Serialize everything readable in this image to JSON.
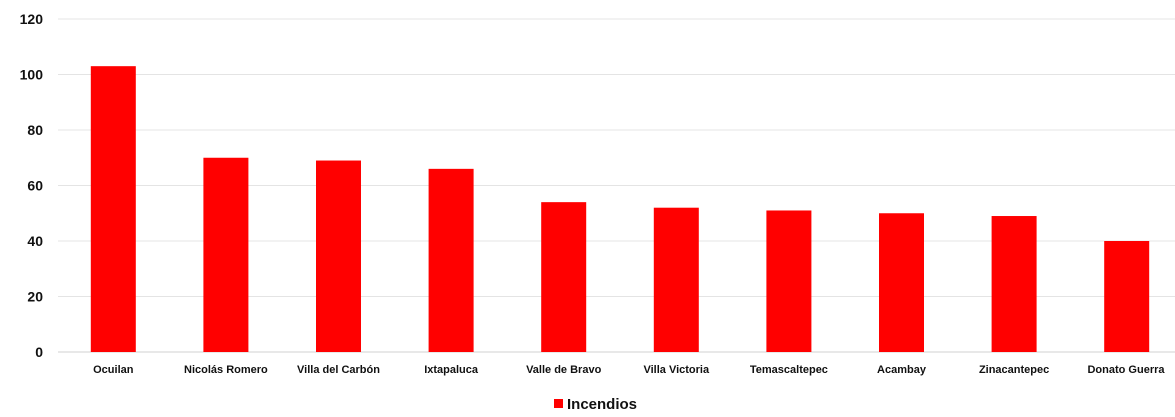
{
  "chart_data": {
    "type": "bar",
    "categories": [
      "Ocuilan",
      "Nicolás Romero",
      "Villa del Carbón",
      "Ixtapaluca",
      "Valle de Bravo",
      "Villa Victoria",
      "Temascaltepec",
      "Acambay",
      "Zinacantepec",
      "Donato Guerra"
    ],
    "series": [
      {
        "name": "Incendios",
        "color": "#ff0000",
        "values": [
          103,
          70,
          69,
          66,
          54,
          52,
          51,
          50,
          49,
          40
        ]
      }
    ],
    "title": "",
    "xlabel": "",
    "ylabel": "",
    "ylim": [
      0,
      120
    ],
    "yticks": [
      0,
      20,
      40,
      60,
      80,
      100,
      120
    ],
    "grid": true,
    "legend_position": "bottom-center"
  }
}
